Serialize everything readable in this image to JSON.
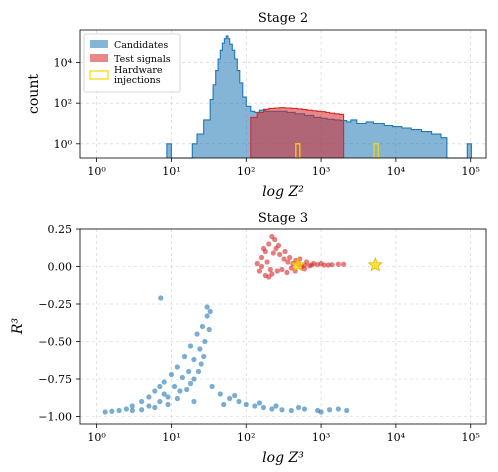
{
  "colors": {
    "candidates": "#1f77b4",
    "test_signals": "#d62728",
    "hardware_injections": "#ffd700",
    "grid": "#cccccc"
  },
  "chart_data": [
    {
      "type": "histogram",
      "title": "Stage 2",
      "xlabel": "log Z²",
      "ylabel": "count",
      "x_scale": "log",
      "y_scale": "log",
      "xlim": [
        0.6,
        160000
      ],
      "ylim": [
        0.2,
        400000
      ],
      "grid": true,
      "legend_position": "top-left",
      "xticks": [
        {
          "v": 1,
          "label": "10⁰"
        },
        {
          "v": 10,
          "label": "10¹"
        },
        {
          "v": 100,
          "label": "10²"
        },
        {
          "v": 1000,
          "label": "10³"
        },
        {
          "v": 10000,
          "label": "10⁴"
        },
        {
          "v": 100000,
          "label": "10⁵"
        }
      ],
      "yticks": [
        {
          "v": 1,
          "label": "10⁰"
        },
        {
          "v": 100,
          "label": "10²"
        },
        {
          "v": 10000,
          "label": "10⁴"
        }
      ],
      "series": [
        {
          "name": "Candidates",
          "style": "filled-step",
          "points": [
            [
              8.7,
              0.2
            ],
            [
              8.7,
              1
            ],
            [
              10,
              1
            ],
            [
              10,
              0.2
            ],
            [
              19,
              0.2
            ],
            [
              19,
              1
            ],
            [
              22,
              3
            ],
            [
              27,
              15
            ],
            [
              33,
              150
            ],
            [
              36,
              800
            ],
            [
              39,
              4000
            ],
            [
              42,
              15000
            ],
            [
              45,
              40000
            ],
            [
              48,
              90000
            ],
            [
              51,
              150000
            ],
            [
              54,
              200000
            ],
            [
              57,
              150000
            ],
            [
              60,
              80000
            ],
            [
              65,
              40000
            ],
            [
              70,
              15000
            ],
            [
              76,
              4000
            ],
            [
              82,
              1000
            ],
            [
              90,
              200
            ],
            [
              100,
              70
            ],
            [
              115,
              40
            ],
            [
              130,
              35
            ],
            [
              150,
              45
            ],
            [
              180,
              40
            ],
            [
              220,
              40
            ],
            [
              280,
              40
            ],
            [
              350,
              35
            ],
            [
              450,
              30
            ],
            [
              600,
              25
            ],
            [
              800,
              20
            ],
            [
              1000,
              18
            ],
            [
              1200,
              16
            ],
            [
              1500,
              15
            ],
            [
              1800,
              14
            ],
            [
              2200,
              12
            ],
            [
              2500,
              15
            ],
            [
              3000,
              10
            ],
            [
              4000,
              12
            ],
            [
              5000,
              10
            ],
            [
              7000,
              8
            ],
            [
              9000,
              7
            ],
            [
              12000,
              6
            ],
            [
              16000,
              5
            ],
            [
              22000,
              4
            ],
            [
              30000,
              3
            ],
            [
              40000,
              2
            ],
            [
              48000,
              1
            ],
            [
              48000,
              0.2
            ],
            [
              90000,
              0.2
            ],
            [
              90000,
              1
            ],
            [
              102000,
              1
            ],
            [
              102000,
              0.2
            ]
          ]
        },
        {
          "name": "Test signals",
          "style": "filled-step",
          "points": [
            [
              115,
              0.2
            ],
            [
              115,
              20
            ],
            [
              140,
              35
            ],
            [
              170,
              50
            ],
            [
              200,
              55
            ],
            [
              240,
              58
            ],
            [
              280,
              60
            ],
            [
              330,
              58
            ],
            [
              400,
              55
            ],
            [
              480,
              52
            ],
            [
              560,
              48
            ],
            [
              650,
              45
            ],
            [
              760,
              42
            ],
            [
              880,
              40
            ],
            [
              1000,
              38
            ],
            [
              1150,
              35
            ],
            [
              1300,
              32
            ],
            [
              1500,
              30
            ],
            [
              1750,
              28
            ],
            [
              2000,
              25
            ],
            [
              2000,
              0.2
            ]
          ]
        },
        {
          "name": "Hardware injections",
          "style": "outline-bar",
          "bars": [
            [
              460,
              520,
              1
            ],
            [
              5100,
              5800,
              1
            ]
          ]
        }
      ]
    },
    {
      "type": "scatter",
      "title": "Stage 3",
      "xlabel": "log Z³",
      "ylabel": "R³",
      "x_scale": "log",
      "xlim": [
        0.6,
        160000
      ],
      "ylim": [
        -1.05,
        0.25
      ],
      "grid": true,
      "xticks": [
        {
          "v": 1,
          "label": "10⁰"
        },
        {
          "v": 10,
          "label": "10¹"
        },
        {
          "v": 100,
          "label": "10²"
        },
        {
          "v": 1000,
          "label": "10³"
        },
        {
          "v": 10000,
          "label": "10⁴"
        },
        {
          "v": 100000,
          "label": "10⁵"
        }
      ],
      "yticks": [
        {
          "v": 0.25,
          "label": "0.25"
        },
        {
          "v": 0,
          "label": "0.00"
        },
        {
          "v": -0.25,
          "label": "−0.25"
        },
        {
          "v": -0.5,
          "label": "−0.50"
        },
        {
          "v": -0.75,
          "label": "−0.75"
        },
        {
          "v": -1,
          "label": "−1.00"
        }
      ],
      "series": [
        {
          "name": "Candidates",
          "points": [
            [
              1.3,
              -0.97
            ],
            [
              1.6,
              -0.965
            ],
            [
              2,
              -0.96
            ],
            [
              2.5,
              -0.95
            ],
            [
              3,
              -0.93
            ],
            [
              4,
              -0.9
            ],
            [
              5,
              -0.87
            ],
            [
              6,
              -0.83
            ],
            [
              7,
              -0.8
            ],
            [
              8,
              -0.77
            ],
            [
              10,
              -0.72
            ],
            [
              12,
              -0.67
            ],
            [
              15,
              -0.6
            ],
            [
              18,
              -0.53
            ],
            [
              22,
              -0.45
            ],
            [
              26,
              -0.4
            ],
            [
              30,
              -0.33
            ],
            [
              33,
              -0.3
            ],
            [
              28,
              -0.5
            ],
            [
              25,
              -0.65
            ],
            [
              20,
              -0.75
            ],
            [
              16,
              -0.82
            ],
            [
              12,
              -0.88
            ],
            [
              9,
              -0.92
            ],
            [
              6,
              -0.94
            ],
            [
              4,
              -0.955
            ],
            [
              8,
              -0.85
            ],
            [
              11,
              -0.8
            ],
            [
              14,
              -0.74
            ],
            [
              17,
              -0.7
            ],
            [
              20,
              -0.62
            ],
            [
              24,
              -0.55
            ],
            [
              35,
              -0.8
            ],
            [
              45,
              -0.85
            ],
            [
              60,
              -0.88
            ],
            [
              80,
              -0.9
            ],
            [
              100,
              -0.92
            ],
            [
              130,
              -0.93
            ],
            [
              170,
              -0.94
            ],
            [
              220,
              -0.95
            ],
            [
              300,
              -0.955
            ],
            [
              400,
              -0.96
            ],
            [
              600,
              -0.95
            ],
            [
              900,
              -0.96
            ],
            [
              1300,
              -0.955
            ],
            [
              1700,
              -0.95
            ],
            [
              2200,
              -0.96
            ],
            [
              7.2,
              -0.21
            ],
            [
              30,
              -0.27
            ],
            [
              20,
              -0.9
            ],
            [
              50,
              -0.92
            ],
            [
              70,
              -0.86
            ],
            [
              150,
              -0.91
            ],
            [
              250,
              -0.93
            ],
            [
              500,
              -0.94
            ],
            [
              1000,
              -0.97
            ],
            [
              3,
              -0.96
            ],
            [
              5,
              -0.93
            ],
            [
              7,
              -0.9
            ],
            [
              9,
              -0.87
            ],
            [
              13,
              -0.83
            ],
            [
              18,
              -0.78
            ],
            [
              23,
              -0.7
            ],
            [
              27,
              -0.6
            ],
            [
              32,
              -0.42
            ]
          ]
        },
        {
          "name": "Test signals",
          "points": [
            [
              140,
              0.02
            ],
            [
              160,
              0.06
            ],
            [
              180,
              0.1
            ],
            [
              200,
              0.15
            ],
            [
              220,
              0.2
            ],
            [
              250,
              0.12
            ],
            [
              280,
              0.08
            ],
            [
              320,
              0.05
            ],
            [
              360,
              0.03
            ],
            [
              420,
              0.02
            ],
            [
              500,
              0.015
            ],
            [
              600,
              0.01
            ],
            [
              750,
              0.01
            ],
            [
              900,
              0.012
            ],
            [
              1100,
              0.01
            ],
            [
              1400,
              0.012
            ],
            [
              1700,
              0.015
            ],
            [
              2000,
              0.015
            ],
            [
              150,
              -0.03
            ],
            [
              180,
              -0.06
            ],
            [
              220,
              -0.05
            ],
            [
              260,
              -0.03
            ],
            [
              300,
              -0.02
            ],
            [
              400,
              -0.01
            ],
            [
              550,
              0.0
            ],
            [
              700,
              0.005
            ],
            [
              160,
              0.0
            ],
            [
              190,
              0.03
            ],
            [
              230,
              0.09
            ],
            [
              270,
              0.14
            ],
            [
              210,
              -0.02
            ],
            [
              330,
              0.1
            ],
            [
              380,
              0.06
            ],
            [
              460,
              0.04
            ],
            [
              520,
              0.05
            ],
            [
              640,
              0.03
            ],
            [
              800,
              0.02
            ],
            [
              1000,
              0.02
            ],
            [
              1250,
              0.01
            ],
            [
              350,
              -0.04
            ],
            [
              450,
              -0.03
            ],
            [
              600,
              -0.015
            ],
            [
              240,
              0.18
            ],
            [
              200,
              -0.07
            ],
            [
              170,
              0.12
            ]
          ]
        },
        {
          "name": "Hardware injections",
          "marker": "star",
          "points": [
            [
              490,
              0.01
            ],
            [
              5300,
              0.01
            ]
          ]
        }
      ]
    }
  ],
  "legend": [
    {
      "label": "Candidates",
      "color": "#1f77b4"
    },
    {
      "label": "Test signals",
      "color": "#d62728"
    },
    {
      "label": "Hardware injections",
      "color": "#ffd700"
    }
  ]
}
